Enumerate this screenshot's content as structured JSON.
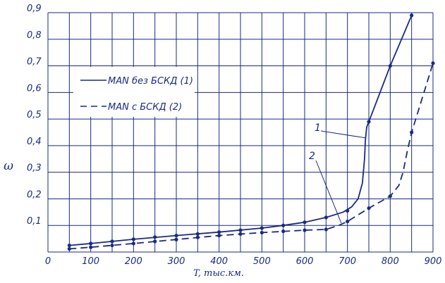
{
  "chart_data": {
    "type": "line",
    "xlabel": "T, тыс.км.",
    "ylabel": "ω",
    "xlim": [
      0,
      900
    ],
    "ylim": [
      0,
      0.9
    ],
    "x_ticks": [
      "0",
      "100",
      "200",
      "300",
      "400",
      "500",
      "600",
      "700",
      "800",
      "900"
    ],
    "y_ticks": [
      "0,1",
      "0,2",
      "0,3",
      "0,4",
      "0,5",
      "0,6",
      "0,7",
      "0,8",
      "0,9"
    ],
    "grid": true,
    "legend_position": "upper-left",
    "series": [
      {
        "name": "MAN без БСКД (1)",
        "style": "solid",
        "color": "#1a2a80",
        "annotation": "1",
        "marker_x": [
          50,
          100,
          150,
          200,
          250,
          300,
          350,
          400,
          450,
          500,
          550,
          600,
          650,
          700,
          750,
          800,
          850
        ],
        "marker_y": [
          0.025,
          0.032,
          0.04,
          0.048,
          0.056,
          0.062,
          0.068,
          0.075,
          0.082,
          0.09,
          0.1,
          0.112,
          0.13,
          0.155,
          0.49,
          0.7,
          0.89
        ],
        "curve_x": [
          50,
          100,
          200,
          300,
          400,
          500,
          550,
          600,
          650,
          690,
          710,
          725,
          735,
          740,
          742,
          745,
          750,
          800,
          850
        ],
        "curve_y": [
          0.025,
          0.032,
          0.048,
          0.062,
          0.075,
          0.09,
          0.1,
          0.112,
          0.13,
          0.15,
          0.17,
          0.2,
          0.26,
          0.35,
          0.42,
          0.47,
          0.49,
          0.7,
          0.89
        ]
      },
      {
        "name": "MAN с БСКД (2)",
        "style": "dashed",
        "color": "#1a2a80",
        "annotation": "2",
        "marker_x": [
          50,
          100,
          150,
          200,
          250,
          300,
          350,
          400,
          450,
          500,
          550,
          600,
          650,
          700,
          750,
          800,
          850,
          900
        ],
        "marker_y": [
          0.012,
          0.018,
          0.025,
          0.032,
          0.04,
          0.047,
          0.055,
          0.062,
          0.068,
          0.073,
          0.078,
          0.082,
          0.085,
          0.115,
          0.165,
          0.21,
          0.45,
          0.71
        ],
        "curve_x": [
          50,
          100,
          200,
          300,
          400,
          500,
          600,
          650,
          680,
          700,
          750,
          800,
          820,
          830,
          840,
          850,
          900
        ],
        "curve_y": [
          0.012,
          0.018,
          0.032,
          0.047,
          0.062,
          0.073,
          0.082,
          0.085,
          0.1,
          0.115,
          0.165,
          0.21,
          0.25,
          0.3,
          0.38,
          0.45,
          0.71
        ]
      }
    ]
  },
  "legend": {
    "items": [
      {
        "label": "MAN без БСКД (1)"
      },
      {
        "label": "MAN с БСКД (2)"
      }
    ]
  },
  "annotations": {
    "label_1": "1",
    "label_2": "2"
  }
}
